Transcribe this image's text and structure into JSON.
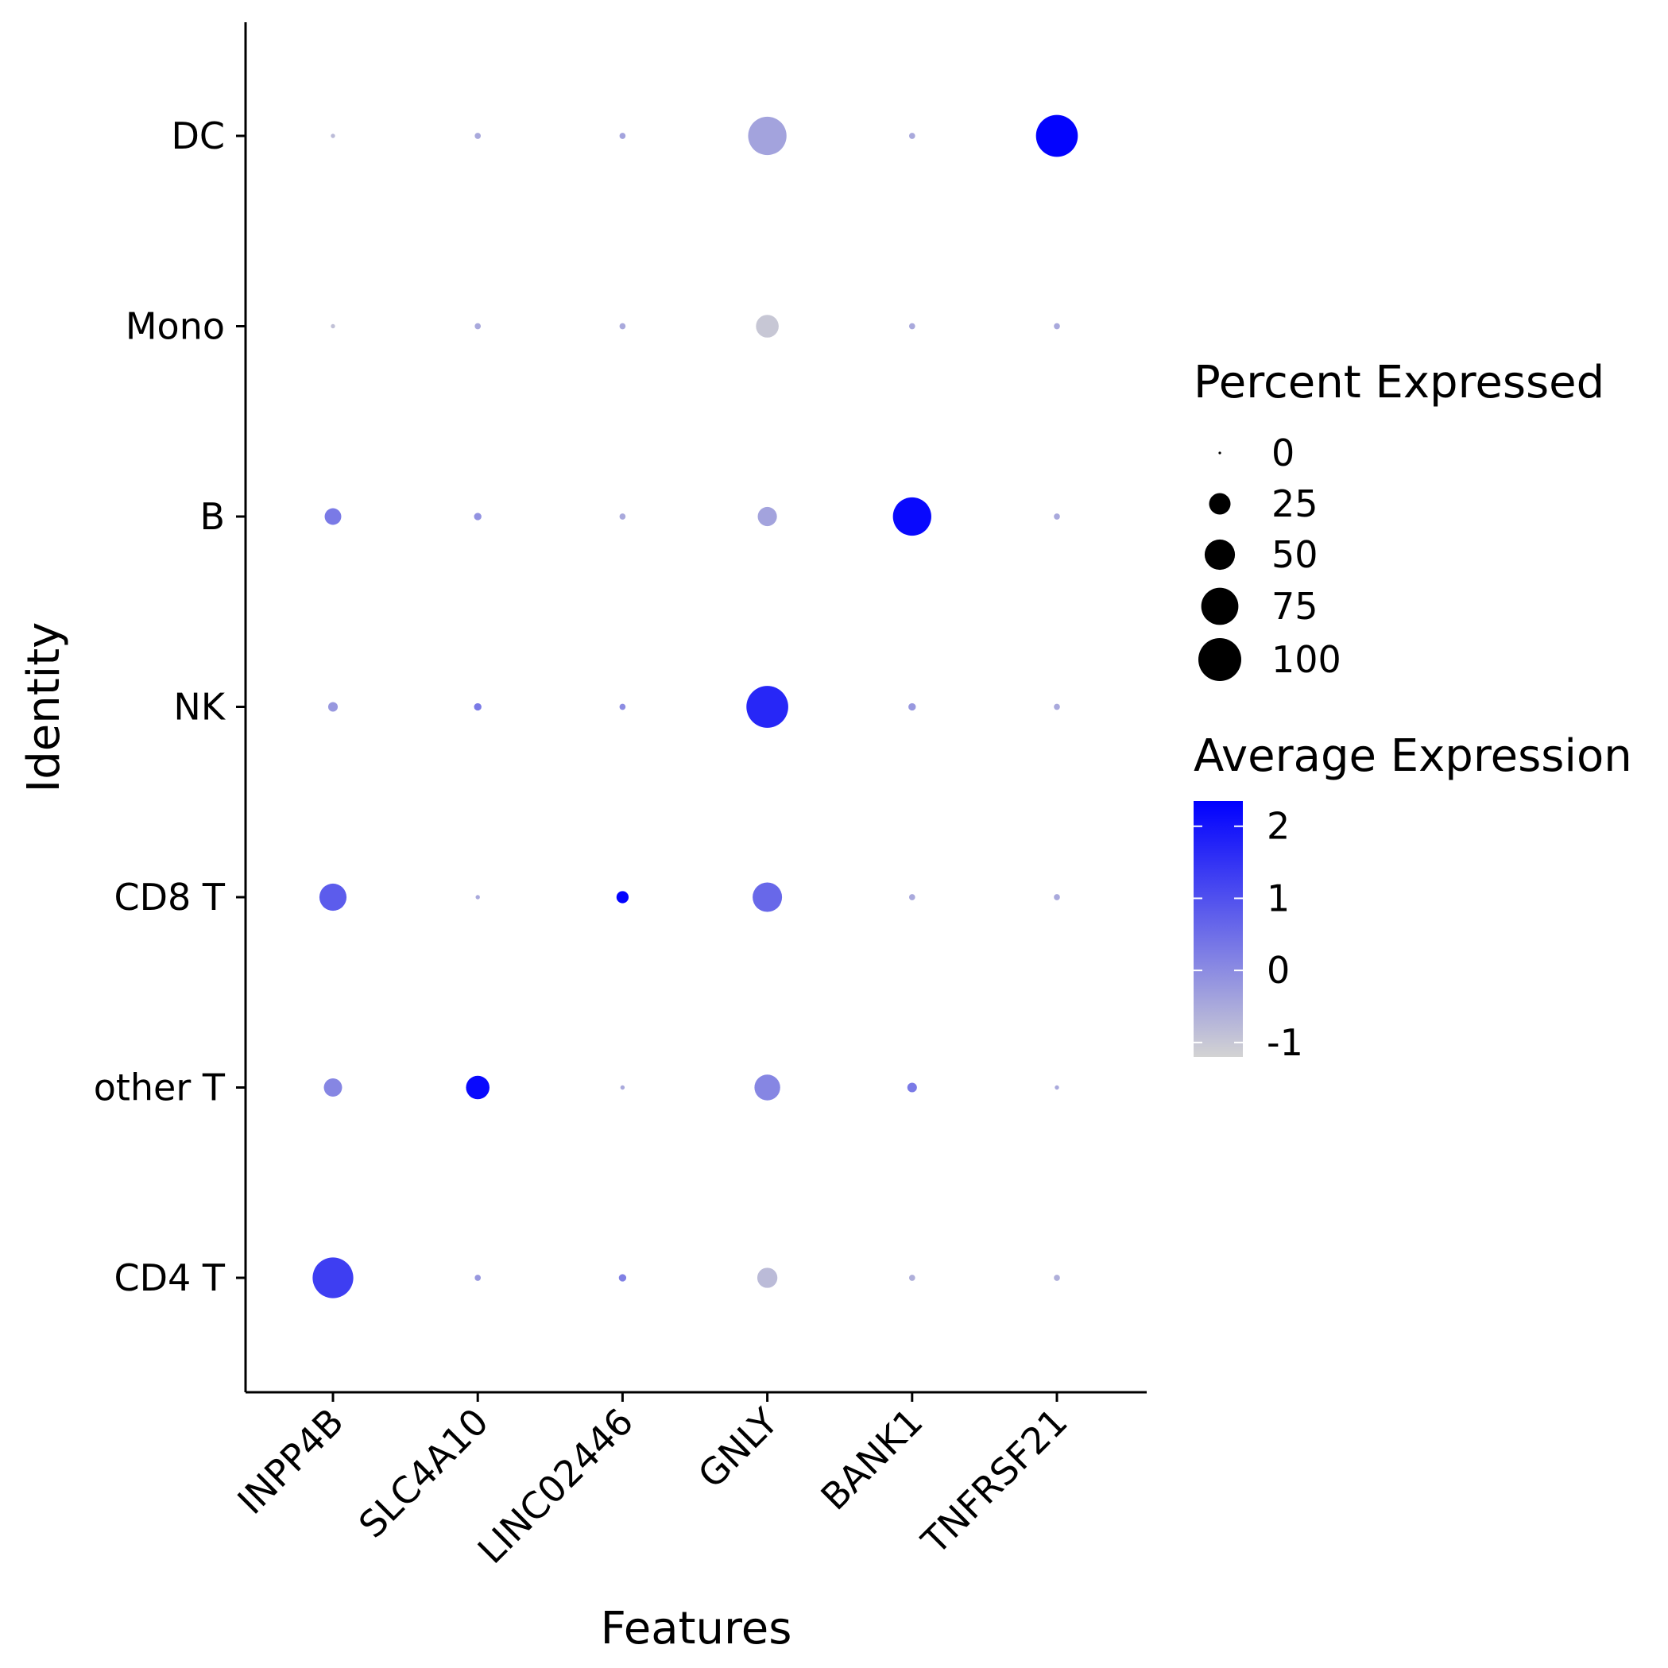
{
  "chart_data": {
    "type": "dot",
    "xlabel": "Features",
    "ylabel": "Identity",
    "features": [
      "INPP4B",
      "SLC4A10",
      "LINC02446",
      "GNLY",
      "BANK1",
      "TNFRSF21"
    ],
    "identities": [
      "CD4 T",
      "other T",
      "CD8 T",
      "NK",
      "B",
      "Mono",
      "DC"
    ],
    "percent_expressed": {
      "CD4 T": [
        90,
        2,
        3,
        22,
        2,
        2
      ],
      "other T": [
        18,
        30,
        1,
        36,
        5,
        1
      ],
      "CD8 T": [
        40,
        1,
        8,
        47,
        2,
        2
      ],
      "NK": [
        5,
        3,
        2,
        95,
        3,
        2
      ],
      "B": [
        15,
        3,
        2,
        20,
        80,
        2
      ],
      "Mono": [
        1,
        2,
        2,
        28,
        2,
        2
      ],
      "DC": [
        1,
        2,
        2,
        80,
        2,
        95
      ]
    },
    "average_expression": {
      "CD4 T": [
        1.3,
        -0.2,
        0.2,
        -0.8,
        -0.6,
        -0.6
      ],
      "other T": [
        0.1,
        2.2,
        -0.5,
        0.1,
        0.3,
        -0.5
      ],
      "CD8 T": [
        0.8,
        -0.5,
        2.3,
        0.6,
        -0.5,
        -0.5
      ],
      "NK": [
        -0.2,
        0.3,
        0.0,
        1.7,
        -0.2,
        -0.5
      ],
      "B": [
        0.3,
        -0.1,
        -0.5,
        -0.4,
        2.2,
        -0.5
      ],
      "Mono": [
        -0.9,
        -0.5,
        -0.5,
        -1.0,
        -0.5,
        -0.5
      ],
      "DC": [
        -0.8,
        -0.5,
        -0.4,
        -0.4,
        -0.5,
        2.3
      ]
    },
    "size_legend": {
      "title": "Percent Expressed",
      "breaks": [
        0,
        25,
        50,
        75,
        100
      ],
      "labels": [
        "0",
        "25",
        "50",
        "75",
        "100"
      ]
    },
    "color_legend": {
      "title": "Average Expression",
      "breaks": [
        2,
        1,
        0,
        -1
      ],
      "labels": [
        "2",
        "1",
        "0",
        "-1"
      ],
      "range": [
        -1.2,
        2.35
      ],
      "low_color": "#d3d3d3",
      "high_color": "#0000ff"
    },
    "grid": false,
    "legend_position": "right"
  }
}
